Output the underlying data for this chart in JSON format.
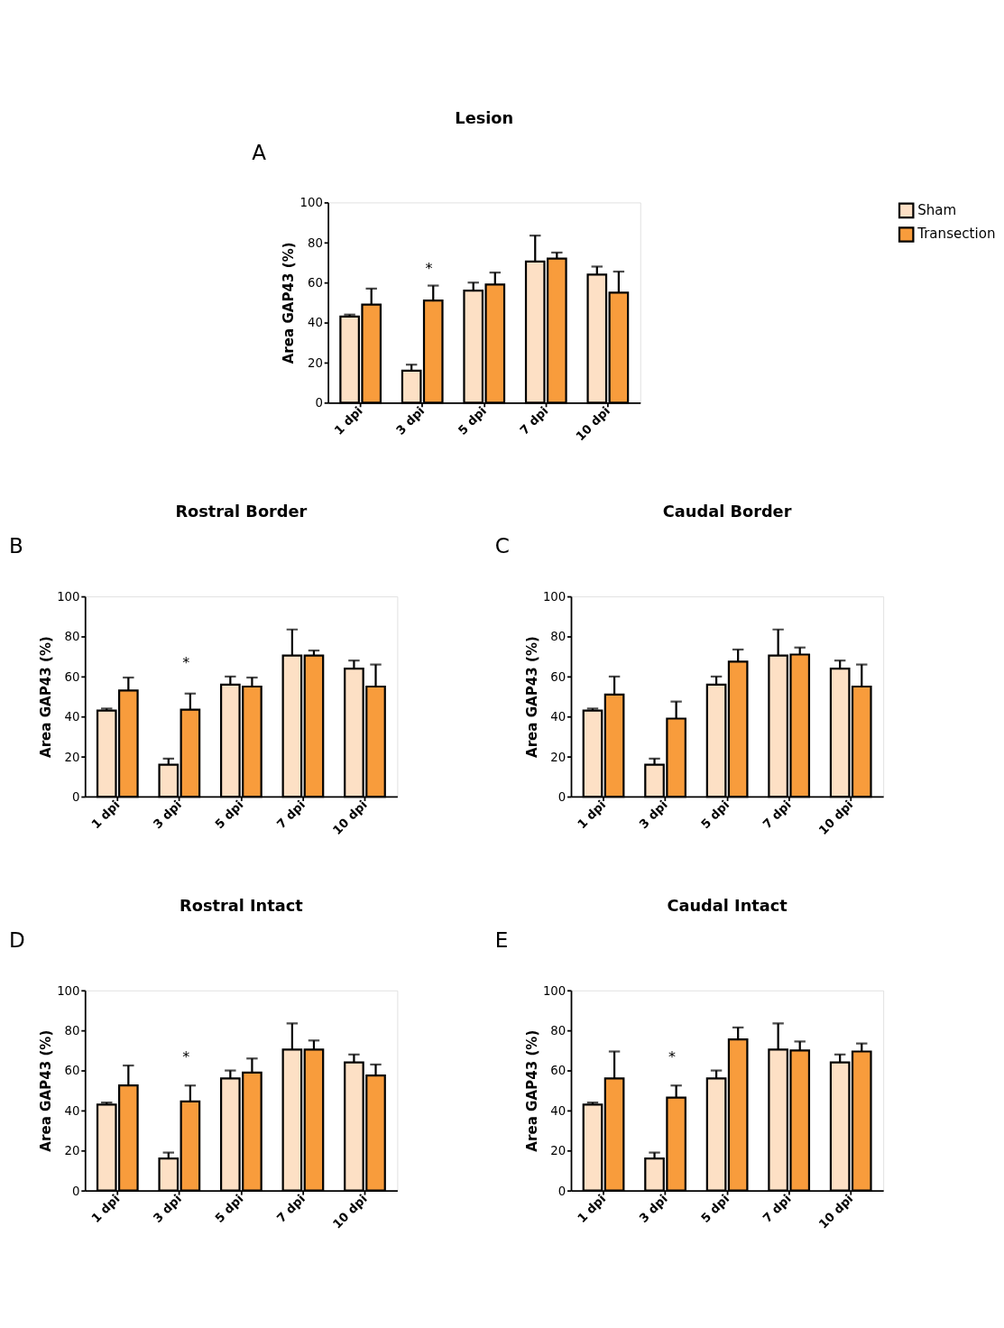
{
  "chart_data": [
    {
      "type": "bar",
      "title": "Lesion",
      "ylabel": "Area GAP43 (%)",
      "categories": [
        "1 dpi",
        "3 dpi",
        "5 dpi",
        "7 dpi",
        "10 dpi"
      ],
      "ylim": [
        0,
        100
      ],
      "yticks": [
        0,
        20,
        40,
        60,
        80,
        100
      ],
      "grid": false,
      "legend": "right",
      "annotations": [
        "A",
        "*"
      ],
      "series": [
        {
          "name": "Sham",
          "color": "#fde0c5",
          "values": [
            43,
            16,
            56,
            70.5,
            64
          ],
          "errors": [
            [
              43,
              44
            ],
            [
              16,
              19
            ],
            [
              56,
              60
            ],
            [
              70.5,
              83.5
            ],
            [
              64,
              68
            ]
          ]
        },
        {
          "name": "Transection",
          "color": "#f89c3c",
          "values": [
            49,
            51,
            59,
            72,
            55
          ],
          "errors": [
            [
              49,
              57
            ],
            [
              51,
              58.5
            ],
            [
              59,
              65
            ],
            [
              72,
              75
            ],
            [
              55,
              65.5
            ]
          ]
        }
      ]
    },
    {
      "type": "bar",
      "title": "Rostral Border",
      "ylabel": "Area GAP43 (%)",
      "categories": [
        "1 dpi",
        "3 dpi",
        "5 dpi",
        "7 dpi",
        "10 dpi"
      ],
      "ylim": [
        0,
        100
      ],
      "yticks": [
        0,
        20,
        40,
        60,
        80,
        100
      ],
      "grid": false,
      "annotations": [
        "B",
        "*"
      ],
      "series": [
        {
          "color": "#fde0c5",
          "values": [
            43,
            16,
            56,
            70.5,
            64
          ],
          "errors": [
            [
              43,
              44
            ],
            [
              16,
              19
            ],
            [
              56,
              60
            ],
            [
              70.5,
              83.5
            ],
            [
              64,
              68
            ]
          ]
        },
        {
          "color": "#f89c3c",
          "values": [
            53,
            43.5,
            55,
            70.5,
            55
          ],
          "errors": [
            [
              53,
              59.5
            ],
            [
              43.5,
              51.5
            ],
            [
              55,
              59.5
            ],
            [
              70.5,
              73
            ],
            [
              55,
              66
            ]
          ]
        }
      ]
    },
    {
      "type": "bar",
      "title": "Caudal Border",
      "ylabel": "Area GAP43 (%)",
      "categories": [
        "1 dpi",
        "3 dpi",
        "5 dpi",
        "7 dpi",
        "10 dpi"
      ],
      "ylim": [
        0,
        100
      ],
      "yticks": [
        0,
        20,
        40,
        60,
        80,
        100
      ],
      "grid": false,
      "annotations": [
        "C"
      ],
      "series": [
        {
          "color": "#fde0c5",
          "values": [
            43,
            16,
            56,
            70.5,
            64
          ],
          "errors": [
            [
              43,
              44
            ],
            [
              16,
              19
            ],
            [
              56,
              60
            ],
            [
              70.5,
              83.5
            ],
            [
              64,
              68
            ]
          ]
        },
        {
          "color": "#f89c3c",
          "values": [
            51,
            39,
            67.5,
            71,
            55
          ],
          "errors": [
            [
              51,
              60
            ],
            [
              39,
              47.5
            ],
            [
              67.5,
              73.5
            ],
            [
              71,
              74.5
            ],
            [
              55,
              66
            ]
          ]
        }
      ]
    },
    {
      "type": "bar",
      "title": "Rostral Intact",
      "ylabel": "Area GAP43 (%)",
      "categories": [
        "1 dpi",
        "3 dpi",
        "5 dpi",
        "7 dpi",
        "10 dpi"
      ],
      "ylim": [
        0,
        100
      ],
      "yticks": [
        0,
        20,
        40,
        60,
        80,
        100
      ],
      "grid": false,
      "annotations": [
        "D",
        "*"
      ],
      "series": [
        {
          "color": "#fde0c5",
          "values": [
            43,
            16,
            56,
            70.5,
            64
          ],
          "errors": [
            [
              43,
              44
            ],
            [
              16,
              19
            ],
            [
              56,
              60
            ],
            [
              70.5,
              83.5
            ],
            [
              64,
              68
            ]
          ]
        },
        {
          "color": "#f89c3c",
          "values": [
            52.5,
            44.5,
            59,
            70.5,
            57.5
          ],
          "errors": [
            [
              52.5,
              62.5
            ],
            [
              44.5,
              52.5
            ],
            [
              59,
              66
            ],
            [
              70.5,
              75
            ],
            [
              57.5,
              63
            ]
          ]
        }
      ]
    },
    {
      "type": "bar",
      "title": "Caudal Intact",
      "ylabel": "Area GAP43 (%)",
      "categories": [
        "1 dpi",
        "3 dpi",
        "5 dpi",
        "7 dpi",
        "10 dpi"
      ],
      "ylim": [
        0,
        100
      ],
      "yticks": [
        0,
        20,
        40,
        60,
        80,
        100
      ],
      "grid": false,
      "annotations": [
        "E",
        "*"
      ],
      "series": [
        {
          "color": "#fde0c5",
          "values": [
            43,
            16,
            56,
            70.5,
            64
          ],
          "errors": [
            [
              43,
              44
            ],
            [
              16,
              19
            ],
            [
              56,
              60
            ],
            [
              70.5,
              83.5
            ],
            [
              64,
              68
            ]
          ]
        },
        {
          "color": "#f89c3c",
          "values": [
            56,
            46.5,
            75.5,
            70,
            69.5
          ],
          "errors": [
            [
              56,
              69.5
            ],
            [
              46.5,
              52.5
            ],
            [
              75.5,
              81.5
            ],
            [
              70,
              74.5
            ],
            [
              69.5,
              73.5
            ]
          ]
        }
      ]
    }
  ]
}
